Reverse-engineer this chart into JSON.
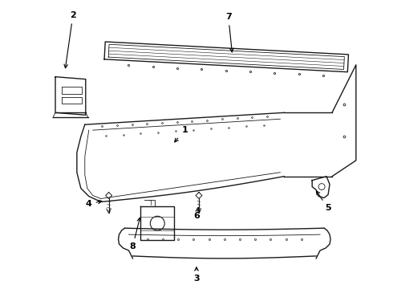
{
  "background_color": "#ffffff",
  "line_color": "#1a1a1a",
  "label_color": "#000000",
  "figure_width": 4.9,
  "figure_height": 3.6,
  "dpi": 100
}
